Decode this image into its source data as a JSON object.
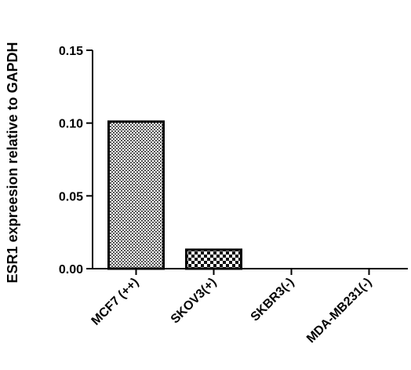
{
  "chart_data": {
    "type": "bar",
    "title": "",
    "xlabel": "",
    "ylabel": "ESR1 expreesion relative to GAPDH",
    "categories": [
      "MCF7 (++)",
      "SKOV3(+)",
      "SKBR3(-)",
      "MDA-MB231(-)"
    ],
    "values": [
      0.101,
      0.013,
      0.0,
      0.0
    ],
    "ylim": [
      0,
      0.15
    ],
    "yticks": [
      0.0,
      0.05,
      0.1,
      0.15
    ],
    "ytick_labels": [
      "0.00",
      "0.05",
      "0.10",
      "0.15"
    ],
    "grid": false,
    "legend": "none",
    "colors": {
      "bar_fill": "#8c8c8c",
      "bar_outline": "#000000",
      "axis": "#000000"
    }
  }
}
